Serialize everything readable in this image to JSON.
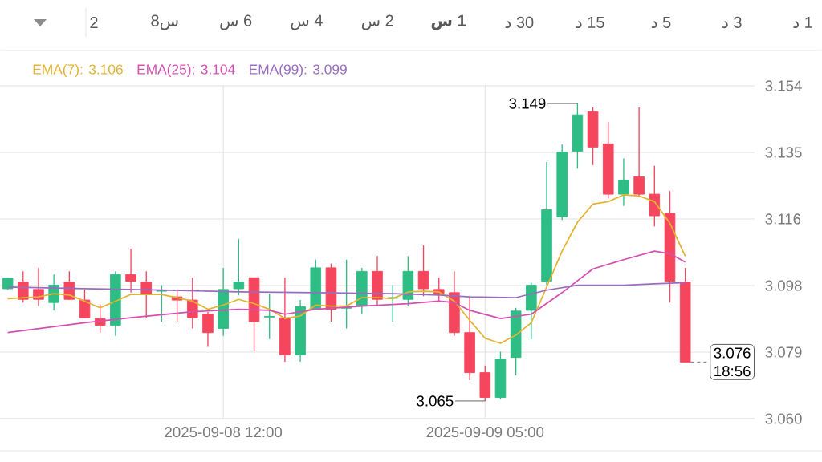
{
  "chart_data": {
    "type": "candlestick",
    "x": [
      "2025-09-07T22:00",
      "2025-09-07T23:00",
      "2025-09-08T00:00",
      "2025-09-08T01:00",
      "2025-09-08T02:00",
      "2025-09-08T03:00",
      "2025-09-08T04:00",
      "2025-09-08T05:00",
      "2025-09-08T06:00",
      "2025-09-08T07:00",
      "2025-09-08T08:00",
      "2025-09-08T09:00",
      "2025-09-08T10:00",
      "2025-09-08T11:00",
      "2025-09-08T12:00",
      "2025-09-08T13:00",
      "2025-09-08T14:00",
      "2025-09-08T15:00",
      "2025-09-08T16:00",
      "2025-09-08T17:00",
      "2025-09-08T18:00",
      "2025-09-08T19:00",
      "2025-09-08T20:00",
      "2025-09-08T21:00",
      "2025-09-08T22:00",
      "2025-09-08T23:00",
      "2025-09-09T00:00",
      "2025-09-09T01:00",
      "2025-09-09T02:00",
      "2025-09-09T03:00",
      "2025-09-09T04:00",
      "2025-09-09T05:00",
      "2025-09-09T06:00",
      "2025-09-09T07:00",
      "2025-09-09T08:00",
      "2025-09-09T09:00",
      "2025-09-09T10:00",
      "2025-09-09T11:00",
      "2025-09-09T12:00",
      "2025-09-09T13:00",
      "2025-09-09T14:00",
      "2025-09-09T15:00",
      "2025-09-09T16:00",
      "2025-09-09T17:00",
      "2025-09-09T18:00"
    ],
    "ohlc": [
      [
        3.0967,
        3.0999,
        3.0965,
        3.0997
      ],
      [
        3.0986,
        3.1016,
        3.0928,
        3.0937
      ],
      [
        3.0965,
        3.1026,
        3.0918,
        3.0937
      ],
      [
        3.0928,
        3.1007,
        3.0906,
        3.0977
      ],
      [
        3.0986,
        3.1016,
        3.0935,
        3.0937
      ],
      [
        3.0935,
        3.0965,
        3.0883,
        3.0885
      ],
      [
        3.0883,
        3.0923,
        3.0843,
        3.0864
      ],
      [
        3.0864,
        3.1016,
        3.0834,
        3.1007
      ],
      [
        3.1007,
        3.108,
        3.0956,
        3.0988
      ],
      [
        3.0986,
        3.1016,
        3.0885,
        3.0953
      ],
      [
        3.096,
        3.0977,
        3.0874,
        3.0962
      ],
      [
        3.0944,
        3.0965,
        3.0874,
        3.0935
      ],
      [
        3.0935,
        3.0998,
        3.0855,
        3.0885
      ],
      [
        3.0895,
        3.0902,
        3.0803,
        3.0843
      ],
      [
        3.0855,
        3.1026,
        3.0834,
        3.0965
      ],
      [
        3.0967,
        3.1108,
        3.0948,
        3.0986
      ],
      [
        3.0998,
        3.0998,
        3.0792,
        3.0874
      ],
      [
        3.0887,
        3.0953,
        3.0825,
        3.0889
      ],
      [
        3.0885,
        3.0998,
        3.0761,
        3.078
      ],
      [
        3.078,
        3.0935,
        3.0761,
        3.0916
      ],
      [
        3.0909,
        3.1049,
        3.0909,
        3.1026
      ],
      [
        3.1026,
        3.1038,
        3.0874,
        3.0909
      ],
      [
        3.0912,
        3.1049,
        3.0855,
        3.0914
      ],
      [
        3.0918,
        3.1026,
        3.0895,
        3.1016
      ],
      [
        3.1016,
        3.1059,
        3.0918,
        3.0937
      ],
      [
        3.094,
        3.0977,
        3.0874,
        3.0942
      ],
      [
        3.0937,
        3.1059,
        3.0918,
        3.1016
      ],
      [
        3.1016,
        3.1089,
        3.0946,
        3.0967
      ],
      [
        3.0965,
        3.0998,
        3.093,
        3.0953
      ],
      [
        3.0956,
        3.1016,
        3.0834,
        3.0843
      ],
      [
        3.0843,
        3.0944,
        3.0709,
        3.073
      ],
      [
        3.073,
        3.075,
        3.065,
        3.066
      ],
      [
        3.066,
        3.0789,
        3.0655,
        3.0768
      ],
      [
        3.0773,
        3.0913,
        3.0722,
        3.0904
      ],
      [
        3.0906,
        3.0984,
        3.0825,
        3.0977
      ],
      [
        3.0988,
        3.1325,
        3.0977,
        3.119
      ],
      [
        3.117,
        3.1374,
        3.1161,
        3.1353
      ],
      [
        3.1355,
        3.149,
        3.1306,
        3.1458
      ],
      [
        3.1467,
        3.1479,
        3.1316,
        3.1367
      ],
      [
        3.1376,
        3.1438,
        3.1222,
        3.1234
      ],
      [
        3.1234,
        3.1335,
        3.1201,
        3.1274
      ],
      [
        3.1283,
        3.1479,
        3.1225,
        3.1234
      ],
      [
        3.1234,
        3.1314,
        3.1143,
        3.1173
      ],
      [
        3.118,
        3.1243,
        3.0928,
        3.0988
      ],
      [
        3.0986,
        3.1026,
        3.076,
        3.076
      ]
    ],
    "colors": [
      "#2ebd85",
      "#f6465d",
      "#f6465d",
      "#2ebd85",
      "#f6465d",
      "#f6465d",
      "#f6465d",
      "#2ebd85",
      "#f6465d",
      "#f6465d",
      "#2ebd85",
      "#f6465d",
      "#f6465d",
      "#f6465d",
      "#2ebd85",
      "#2ebd85",
      "#f6465d",
      "#2ebd85",
      "#f6465d",
      "#2ebd85",
      "#2ebd85",
      "#f6465d",
      "#2ebd85",
      "#2ebd85",
      "#f6465d",
      "#2ebd85",
      "#2ebd85",
      "#f6465d",
      "#f6465d",
      "#f6465d",
      "#f6465d",
      "#f6465d",
      "#2ebd85",
      "#2ebd85",
      "#2ebd85",
      "#2ebd85",
      "#2ebd85",
      "#2ebd85",
      "#f6465d",
      "#f6465d",
      "#2ebd85",
      "#f6465d",
      "#f6465d",
      "#f6465d",
      "#f6465d"
    ],
    "series": [
      {
        "type": "line",
        "name": "EMA(7): 3.106",
        "color": "#e3b330",
        "x": [
          "2025-09-07T22:00",
          "2025-09-08T00:00",
          "2025-09-08T01:00",
          "2025-09-08T02:00",
          "2025-09-08T03:00",
          "2025-09-08T04:00",
          "2025-09-08T05:00",
          "2025-09-08T06:00",
          "2025-09-08T08:00",
          "2025-09-08T10:00",
          "2025-09-08T11:00",
          "2025-09-08T12:00",
          "2025-09-08T13:00",
          "2025-09-08T14:00",
          "2025-09-08T15:00",
          "2025-09-08T16:00",
          "2025-09-08T17:00",
          "2025-09-08T18:00",
          "2025-09-08T19:00",
          "2025-09-08T20:00",
          "2025-09-08T21:00",
          "2025-09-08T22:00",
          "2025-09-08T23:00",
          "2025-09-09T00:00",
          "2025-09-09T01:00",
          "2025-09-09T02:00",
          "2025-09-09T03:00",
          "2025-09-09T04:00",
          "2025-09-09T05:00",
          "2025-09-09T06:00",
          "2025-09-09T07:00",
          "2025-09-09T08:00",
          "2025-09-09T09:00",
          "2025-09-09T10:00",
          "2025-09-09T11:00",
          "2025-09-09T12:00",
          "2025-09-09T13:00",
          "2025-09-09T14:00",
          "2025-09-09T15:00",
          "2025-09-09T16:00",
          "2025-09-09T17:00",
          "2025-09-09T18:00"
        ],
        "values": [
          3.0939,
          3.0944,
          3.0953,
          3.0949,
          3.0932,
          3.0913,
          3.0932,
          3.0951,
          3.0951,
          3.0932,
          3.0909,
          3.0921,
          3.0937,
          3.0925,
          3.0909,
          3.0883,
          3.089,
          3.0921,
          3.0918,
          3.0918,
          3.0942,
          3.0942,
          3.0939,
          3.0958,
          3.096,
          3.0958,
          3.0932,
          3.0878,
          3.0827,
          3.0813,
          3.0836,
          3.0871,
          3.0972,
          3.1073,
          3.1155,
          3.1206,
          3.1213,
          3.1232,
          3.1229,
          3.1213,
          3.1152,
          3.1059
        ]
      },
      {
        "type": "line",
        "name": "EMA(25): 3.104",
        "color": "#d54fb2",
        "x": [
          "2025-09-07T22:00",
          "2025-09-08T03:00",
          "2025-09-08T06:00",
          "2025-09-08T10:00",
          "2025-09-08T13:00",
          "2025-09-08T15:00",
          "2025-09-08T16:00",
          "2025-09-08T18:00",
          "2025-09-08T21:00",
          "2025-09-09T00:00",
          "2025-09-09T02:00",
          "2025-09-09T03:00",
          "2025-09-09T04:00",
          "2025-09-09T06:00",
          "2025-09-09T08:00",
          "2025-09-09T10:00",
          "2025-09-09T12:00",
          "2025-09-09T14:00",
          "2025-09-09T16:00",
          "2025-09-09T17:00",
          "2025-09-09T18:00"
        ],
        "values": [
          3.0843,
          3.0871,
          3.0885,
          3.0902,
          3.0909,
          3.0906,
          3.0895,
          3.0909,
          3.0918,
          3.0925,
          3.0932,
          3.0928,
          3.0906,
          3.0883,
          3.0895,
          3.0956,
          3.1023,
          3.1049,
          3.1073,
          3.1066,
          3.1042
        ]
      },
      {
        "type": "line",
        "name": "EMA(99): 3.099",
        "color": "#9a6cc0",
        "x": [
          "2025-09-07T22:00",
          "2025-09-08T03:00",
          "2025-09-08T08:00",
          "2025-09-08T13:00",
          "2025-09-08T18:00",
          "2025-09-08T23:00",
          "2025-09-09T02:00",
          "2025-09-09T04:00",
          "2025-09-09T07:00",
          "2025-09-09T09:00",
          "2025-09-09T11:00",
          "2025-09-09T14:00",
          "2025-09-09T16:00",
          "2025-09-09T18:00"
        ],
        "values": [
          3.0972,
          3.0967,
          3.0963,
          3.0958,
          3.0956,
          3.0953,
          3.0949,
          3.0944,
          3.0942,
          3.0963,
          3.0977,
          3.0977,
          3.0981,
          3.0984
        ]
      }
    ],
    "xlim": [
      "2025-09-07T21:30",
      "2025-09-09T22:30"
    ],
    "xticks": [
      {
        "value": "2025-09-08T12:00",
        "label": "2025-09-08 12:00"
      },
      {
        "value": "2025-09-09T05:00",
        "label": "2025-09-09 05:00"
      }
    ],
    "ylim": [
      3.06,
      3.154
    ],
    "yticks": [
      {
        "value": 3.06,
        "label": "3.060"
      },
      {
        "value": 3.0788,
        "label": "3.079"
      },
      {
        "value": 3.0976,
        "label": "3.098"
      },
      {
        "value": 3.1164,
        "label": "3.116"
      },
      {
        "value": 3.1352,
        "label": "3.135"
      },
      {
        "value": 3.154,
        "label": "3.154"
      }
    ],
    "grid": true,
    "legend": "top left",
    "annotations": [
      {
        "text": "3.149",
        "x": "2025-09-09T11:00",
        "y": 3.149
      },
      {
        "text": "3.065",
        "x": "2025-09-09T05:00",
        "y": 3.065
      },
      {
        "text": "3.076",
        "x": "2025-09-09T18:00",
        "y": 3.076
      },
      "18:56",
      "2",
      "8س",
      "س 6",
      "س 4",
      "س 2",
      "**س 1**",
      "د 30",
      "د 15",
      "د 5",
      "د 3",
      "د 1"
    ]
  }
}
